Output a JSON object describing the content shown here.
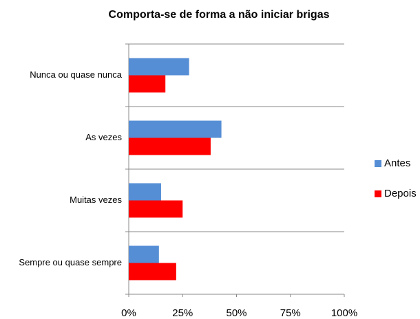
{
  "chart_data": {
    "type": "hbar",
    "title": "Comporta-se de forma a não iniciar brigas",
    "categories": [
      "Nunca ou quase nunca",
      "As vezes",
      "Muitas vezes",
      "Sempre ou quase sempre"
    ],
    "series": [
      {
        "name": "Antes",
        "color": "#558ed5",
        "values": [
          28,
          43,
          15,
          14
        ]
      },
      {
        "name": "Depois",
        "color": "#ff0000",
        "values": [
          17,
          38,
          25,
          22
        ]
      }
    ],
    "xlim": [
      0,
      100
    ],
    "xticks": [
      {
        "value": 0,
        "label": "0%"
      },
      {
        "value": 25,
        "label": "25%"
      },
      {
        "value": 50,
        "label": "50%"
      },
      {
        "value": 75,
        "label": "75%"
      },
      {
        "value": 100,
        "label": "100%"
      }
    ],
    "legend": "right"
  }
}
